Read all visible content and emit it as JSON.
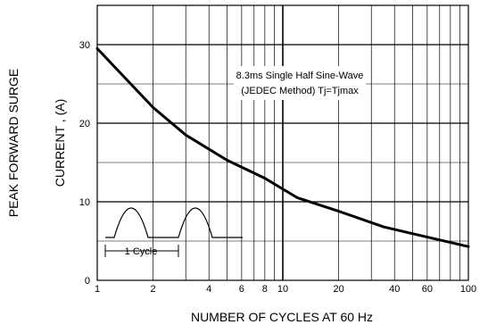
{
  "chart_data": {
    "type": "line",
    "title": "",
    "xlabel": "NUMBER OF CYCLES AT 60 Hz",
    "ylabel_line1": "PEAK FORWARD SURGE",
    "ylabel_line2": "CURRENT , (A)",
    "x_scale": "log",
    "xlim": [
      1,
      100
    ],
    "ylim": [
      0,
      35
    ],
    "x_ticks": [
      {
        "value": 1,
        "label": "1"
      },
      {
        "value": 2,
        "label": "2"
      },
      {
        "value": 4,
        "label": "4"
      },
      {
        "value": 6,
        "label": "6"
      },
      {
        "value": 8,
        "label": "8"
      },
      {
        "value": 10,
        "label": "10"
      },
      {
        "value": 20,
        "label": "20"
      },
      {
        "value": 40,
        "label": "40"
      },
      {
        "value": 60,
        "label": "60"
      },
      {
        "value": 100,
        "label": "100"
      }
    ],
    "y_ticks": [
      {
        "value": 0,
        "label": "0"
      },
      {
        "value": 10,
        "label": "10"
      },
      {
        "value": 20,
        "label": "20"
      },
      {
        "value": 30,
        "label": "30"
      }
    ],
    "grid": true,
    "annotation_line1": "8.3ms Single Half Sine-Wave",
    "annotation_line2": "(JEDEC Method)  Tj=Tjmax",
    "inset_label": "1 Cycle",
    "series": [
      {
        "x": [
          1,
          2,
          3,
          5,
          8,
          12,
          20,
          35,
          60,
          100
        ],
        "y": [
          29.5,
          22,
          18.5,
          15.3,
          13,
          10.5,
          8.8,
          6.8,
          5.5,
          4.3
        ]
      }
    ]
  }
}
